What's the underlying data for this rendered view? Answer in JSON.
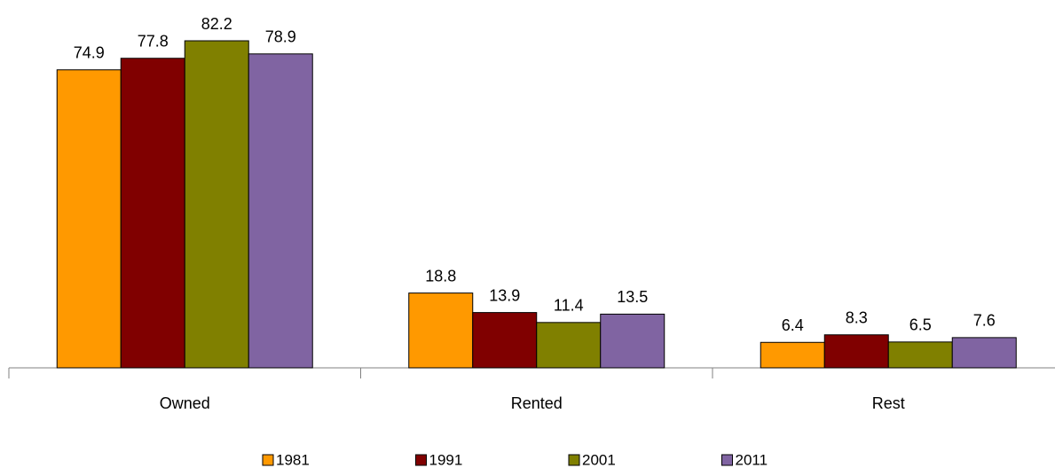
{
  "chart_data": {
    "type": "bar",
    "categories": [
      "Owned",
      "Rented",
      "Rest"
    ],
    "series": [
      {
        "name": "1981",
        "color": "#FF9900",
        "values": [
          74.9,
          18.8,
          6.4
        ]
      },
      {
        "name": "1991",
        "color": "#800000",
        "values": [
          77.8,
          13.9,
          8.3
        ]
      },
      {
        "name": "2001",
        "color": "#808000",
        "values": [
          82.2,
          11.4,
          6.5
        ]
      },
      {
        "name": "2011",
        "color": "#8064A2",
        "values": [
          78.9,
          13.5,
          7.6
        ]
      }
    ],
    "legend": "bottom"
  }
}
